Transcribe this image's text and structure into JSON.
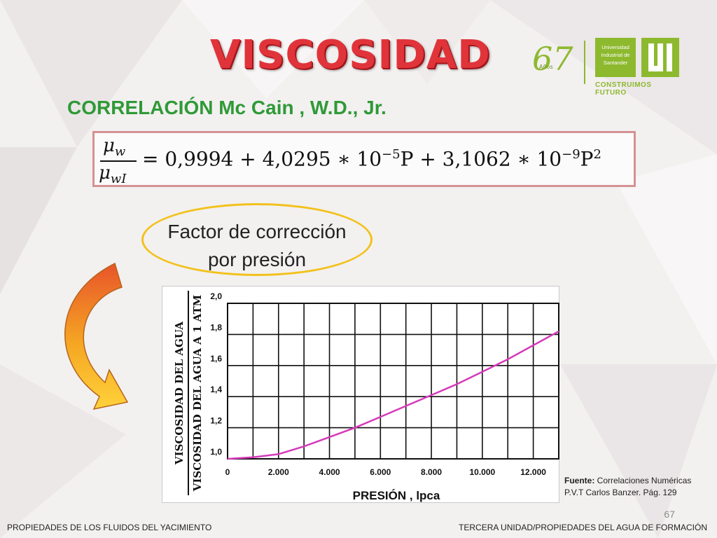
{
  "slide": {
    "title": "VISCOSIDAD",
    "subtitle": "CORRELACIÓN Mc Cain , W.D., Jr.",
    "formula": {
      "numerator": "μ",
      "numerator_sub": "w",
      "denominator": "μ",
      "denominator_sub": "wI",
      "rhs_part1": "= 0,9994 + 4,0295 ∗ 10",
      "exp1": "−5",
      "rhs_part2": "P + 3,1062 ∗  10",
      "exp2": "−9",
      "rhs_part3": "P",
      "exp3": "2"
    },
    "callout": {
      "line1": "Factor de corrección",
      "line2": "por presión"
    },
    "source": {
      "label": "Fuente:",
      "text": " Correlaciones Numéricas P.V.T Carlos Banzer. Pág. 129"
    },
    "page_number": "67",
    "footer_left": "PROPIEDADES DE LOS FLUIDOS DEL YACIMIENTO",
    "footer_right": "TERCERA UNIDAD/PROPIEDADES DEL AGUA DE FORMACIÓN",
    "logo": {
      "anniversary": "67",
      "anniversary_word": "Años",
      "university": "Universidad Industrial de Santander",
      "tagline": "CONSTRUIMOS FUTURO"
    }
  },
  "colors": {
    "title_red": "#e0343a",
    "subtitle_green": "#2f9a37",
    "curve_magenta": "#d63ab8",
    "callout_yellow": "#f2c21c",
    "brand_green": "#8db92e"
  },
  "chart_data": {
    "type": "line",
    "title": "",
    "xlabel": "PRESIÓN , lpca",
    "ylabel_numerator": "VISCOSIDAD DEL AGUA",
    "ylabel_denominator": "VISCOSIDAD DEL AGUA A 1 ATM",
    "xlim": [
      0,
      13000
    ],
    "ylim": [
      1.0,
      2.0
    ],
    "grid": true,
    "x_ticks": [
      {
        "value": 0,
        "label": "0"
      },
      {
        "value": 2000,
        "label": "2.000"
      },
      {
        "value": 4000,
        "label": "4.000"
      },
      {
        "value": 6000,
        "label": "6.000"
      },
      {
        "value": 8000,
        "label": "8.000"
      },
      {
        "value": 10000,
        "label": "10.000"
      },
      {
        "value": 12000,
        "label": "12.000"
      }
    ],
    "y_ticks": [
      {
        "value": 1.0,
        "label": "1,0"
      },
      {
        "value": 1.2,
        "label": "1,2"
      },
      {
        "value": 1.4,
        "label": "1,4"
      },
      {
        "value": 1.6,
        "label": "1,6"
      },
      {
        "value": 1.8,
        "label": "1,8"
      },
      {
        "value": 2.0,
        "label": "2,0"
      }
    ],
    "series": [
      {
        "color": "#d63ab8",
        "x": [
          0,
          1000,
          2000,
          3000,
          4000,
          5000,
          6000,
          7000,
          8000,
          9000,
          10000,
          11000,
          12000,
          13000
        ],
        "y": [
          1.0,
          1.01,
          1.03,
          1.08,
          1.14,
          1.2,
          1.27,
          1.34,
          1.41,
          1.48,
          1.56,
          1.64,
          1.73,
          1.82
        ]
      }
    ]
  }
}
